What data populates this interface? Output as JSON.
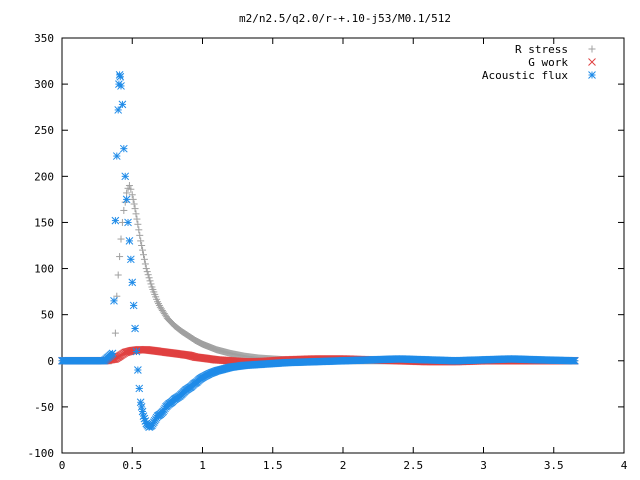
{
  "chart_data": {
    "type": "scatter",
    "title": "m2/n2.5/q2.0/r-+.10-j53/M0.1/512",
    "xlabel": "",
    "ylabel": "",
    "xlim": [
      0,
      4
    ],
    "ylim": [
      -100,
      350
    ],
    "xticks": [
      0,
      0.5,
      1,
      1.5,
      2,
      2.5,
      3,
      3.5,
      4
    ],
    "xtick_labels": [
      "0",
      "0.5",
      "1",
      "1.5",
      "2",
      "2.5",
      "3",
      "3.5",
      "4"
    ],
    "yticks": [
      -100,
      -50,
      0,
      50,
      100,
      150,
      200,
      250,
      300,
      350
    ],
    "ytick_labels": [
      "-100",
      "-50",
      "0",
      "50",
      "100",
      "150",
      "200",
      "250",
      "300",
      "350"
    ],
    "grid": false,
    "legend_position": "top-right",
    "series": [
      {
        "name": "R stress",
        "marker": "plus",
        "color": "#a0a0a0",
        "x": [
          0.0,
          0.1,
          0.2,
          0.3,
          0.35,
          0.37,
          0.38,
          0.39,
          0.4,
          0.41,
          0.42,
          0.43,
          0.44,
          0.45,
          0.46,
          0.47,
          0.48,
          0.49,
          0.5,
          0.52,
          0.54,
          0.56,
          0.58,
          0.6,
          0.62,
          0.64,
          0.66,
          0.68,
          0.7,
          0.75,
          0.8,
          0.85,
          0.9,
          0.95,
          1.0,
          1.05,
          1.1,
          1.2,
          1.3,
          1.4,
          1.5,
          1.6,
          1.8,
          2.0,
          2.2,
          2.4,
          2.6,
          2.8,
          3.0,
          3.2,
          3.4,
          3.65
        ],
        "y": [
          0,
          0,
          0,
          0,
          0,
          5,
          30,
          70,
          93,
          113,
          132,
          150,
          163,
          172,
          182,
          187,
          190,
          186,
          180,
          165,
          148,
          130,
          115,
          100,
          90,
          80,
          72,
          64,
          58,
          46,
          38,
          32,
          27,
          22,
          18,
          15,
          12,
          8,
          5,
          3,
          2,
          1,
          0,
          0,
          0,
          0,
          0,
          0,
          0,
          0,
          0,
          0
        ]
      },
      {
        "name": "G work",
        "marker": "cross",
        "color": "#e04040",
        "x": [
          0.0,
          0.1,
          0.2,
          0.3,
          0.38,
          0.4,
          0.42,
          0.45,
          0.5,
          0.55,
          0.6,
          0.65,
          0.7,
          0.75,
          0.8,
          0.85,
          0.9,
          0.95,
          1.0,
          1.1,
          1.2,
          1.3,
          1.4,
          1.5,
          1.6,
          1.8,
          2.0,
          2.2,
          2.4,
          2.6,
          2.8,
          3.0,
          3.2,
          3.4,
          3.65
        ],
        "y": [
          0,
          0,
          0,
          0,
          2,
          4,
          6,
          9,
          11,
          12,
          12,
          11,
          10,
          9,
          8,
          7,
          6,
          4,
          3,
          1,
          0,
          -1,
          -1,
          0,
          1,
          2,
          2,
          1,
          0,
          -1,
          -1,
          0,
          0,
          0,
          0
        ]
      },
      {
        "name": "Acoustic flux",
        "marker": "star",
        "color": "#1f8be8",
        "x": [
          0.0,
          0.1,
          0.2,
          0.3,
          0.36,
          0.37,
          0.38,
          0.39,
          0.4,
          0.405,
          0.41,
          0.415,
          0.42,
          0.43,
          0.44,
          0.45,
          0.46,
          0.47,
          0.48,
          0.49,
          0.5,
          0.51,
          0.52,
          0.53,
          0.54,
          0.55,
          0.56,
          0.58,
          0.6,
          0.62,
          0.64,
          0.66,
          0.68,
          0.7,
          0.72,
          0.74,
          0.76,
          0.78,
          0.8,
          0.82,
          0.84,
          0.86,
          0.88,
          0.9,
          0.92,
          0.94,
          0.96,
          0.98,
          1.0,
          1.05,
          1.1,
          1.15,
          1.2,
          1.3,
          1.4,
          1.5,
          1.6,
          1.8,
          2.0,
          2.2,
          2.4,
          2.6,
          2.8,
          3.0,
          3.2,
          3.4,
          3.65
        ],
        "y": [
          0,
          0,
          0,
          0,
          8,
          65,
          152,
          222,
          272,
          300,
          310,
          308,
          298,
          278,
          230,
          200,
          175,
          150,
          130,
          110,
          85,
          60,
          35,
          10,
          -10,
          -30,
          -45,
          -60,
          -68,
          -72,
          -70,
          -65,
          -60,
          -58,
          -55,
          -50,
          -47,
          -45,
          -42,
          -40,
          -38,
          -35,
          -32,
          -30,
          -28,
          -25,
          -23,
          -20,
          -18,
          -14,
          -11,
          -9,
          -7,
          -5,
          -4,
          -3,
          -2,
          -1,
          0,
          1,
          2,
          1,
          0,
          1,
          2,
          1,
          0
        ]
      }
    ]
  }
}
